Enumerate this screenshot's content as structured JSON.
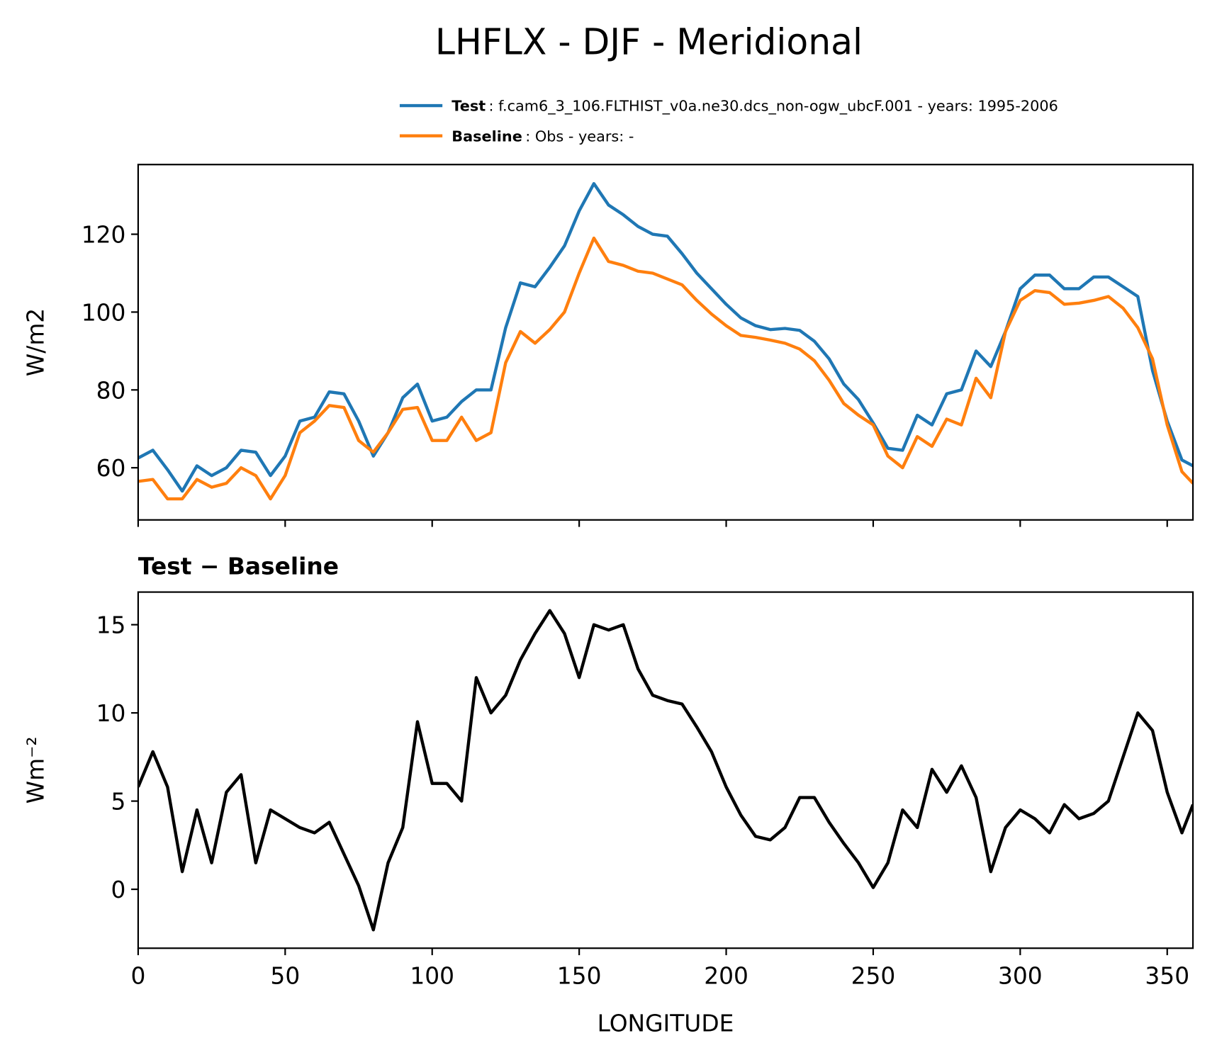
{
  "title": "LHFLX - DJF - Meridional",
  "chart_data": [
    {
      "type": "line",
      "ylabel": "W/m2",
      "x": [
        0,
        5,
        10,
        15,
        20,
        25,
        30,
        35,
        40,
        45,
        50,
        55,
        60,
        65,
        70,
        75,
        80,
        85,
        90,
        95,
        100,
        105,
        110,
        115,
        120,
        125,
        130,
        135,
        140,
        145,
        150,
        155,
        160,
        165,
        170,
        175,
        180,
        185,
        190,
        195,
        200,
        205,
        210,
        215,
        220,
        225,
        230,
        235,
        240,
        245,
        250,
        255,
        260,
        265,
        270,
        275,
        280,
        285,
        290,
        295,
        300,
        305,
        310,
        315,
        320,
        325,
        330,
        335,
        340,
        345,
        350,
        355,
        358.75
      ],
      "series": [
        {
          "name": "Test",
          "description": ": f.cam6_3_106.FLTHIST_v0a.ne30.dcs_non-ogw_ubcF.001 - years: 1995-2006",
          "color": "#1f77b4",
          "values": [
            62.5,
            64.5,
            59.5,
            54,
            60.5,
            58,
            60,
            64.5,
            64,
            58,
            63,
            72,
            73,
            79.5,
            79,
            72,
            63,
            69,
            78,
            81.5,
            72,
            73,
            77,
            80,
            80,
            96,
            107.5,
            106.5,
            111.5,
            117,
            126,
            133,
            127.5,
            125,
            122,
            120,
            119.5,
            115,
            110,
            106,
            102,
            98.5,
            96.5,
            95.5,
            95.8,
            95.3,
            92.5,
            88,
            81.5,
            77.5,
            71.5,
            65,
            64.5,
            73.5,
            71,
            79,
            80,
            90,
            86,
            95,
            106,
            109.5,
            109.5,
            106,
            106,
            109,
            109,
            106.5,
            104,
            85,
            72,
            62,
            60.5
          ]
        },
        {
          "name": "Baseline",
          "description": ": Obs - years: -",
          "color": "#ff7f0e",
          "values": [
            56.5,
            57,
            52,
            52,
            57,
            55,
            56,
            60,
            58,
            52,
            58,
            69,
            72,
            76,
            75.5,
            67,
            64,
            69,
            75,
            75.5,
            67,
            67,
            73,
            67,
            69,
            87,
            95,
            92,
            95.5,
            100,
            110,
            119,
            113,
            112,
            110.5,
            110,
            108.5,
            107,
            103,
            99.5,
            96.5,
            94,
            93.5,
            92.8,
            92,
            90.5,
            87.5,
            82.5,
            76.5,
            73.5,
            71,
            63,
            60,
            68,
            65.5,
            72.5,
            71,
            83,
            78,
            95,
            103,
            105.5,
            105,
            102,
            102.3,
            103,
            104,
            101,
            96,
            88,
            71,
            59,
            56
          ]
        }
      ],
      "xlim": [
        0,
        358.75
      ],
      "xticks": [
        0,
        50,
        100,
        150,
        200,
        250,
        300,
        350
      ],
      "xtick_labels": false,
      "ylim": [
        46.6,
        137.9
      ],
      "yticks": [
        60,
        80,
        100,
        120
      ]
    },
    {
      "type": "line",
      "title": "Test − Baseline",
      "xlabel": "LONGITUDE",
      "ylabel": "Wm⁻²",
      "x": [
        0,
        5,
        10,
        15,
        20,
        25,
        30,
        35,
        40,
        45,
        50,
        55,
        60,
        65,
        70,
        75,
        80,
        85,
        90,
        95,
        100,
        105,
        110,
        115,
        120,
        125,
        130,
        135,
        140,
        145,
        150,
        155,
        160,
        165,
        170,
        175,
        180,
        185,
        190,
        195,
        200,
        205,
        210,
        215,
        220,
        225,
        230,
        235,
        240,
        245,
        250,
        255,
        260,
        265,
        270,
        275,
        280,
        285,
        290,
        295,
        300,
        305,
        310,
        315,
        320,
        325,
        330,
        335,
        340,
        345,
        350,
        355,
        358.75
      ],
      "series": [
        {
          "color": "#000000",
          "values": [
            5.8,
            7.8,
            5.8,
            1,
            4.5,
            1.5,
            5.5,
            6.5,
            1.5,
            4.5,
            4,
            3.5,
            3.2,
            3.8,
            2,
            0.2,
            -2.3,
            1.5,
            3.5,
            9.5,
            6,
            6,
            5,
            12,
            10,
            11,
            13,
            14.5,
            15.8,
            14.5,
            12,
            15,
            14.7,
            15,
            12.5,
            11,
            10.7,
            10.5,
            9.2,
            7.8,
            5.8,
            4.2,
            3,
            2.8,
            3.5,
            5.2,
            5.2,
            3.8,
            2.6,
            1.5,
            0.1,
            1.5,
            4.5,
            3.5,
            6.8,
            5.5,
            7,
            5.2,
            1,
            3.5,
            4.5,
            4,
            3.2,
            4.8,
            4,
            4.3,
            5,
            7.5,
            10,
            9,
            5.5,
            3.2,
            4.8
          ]
        }
      ],
      "xlim": [
        0,
        358.75
      ],
      "xticks": [
        0,
        50,
        100,
        150,
        200,
        250,
        300,
        350
      ],
      "xtick_labels": true,
      "ylim": [
        -3.34,
        16.85
      ],
      "yticks": [
        0,
        5,
        10,
        15
      ]
    }
  ]
}
